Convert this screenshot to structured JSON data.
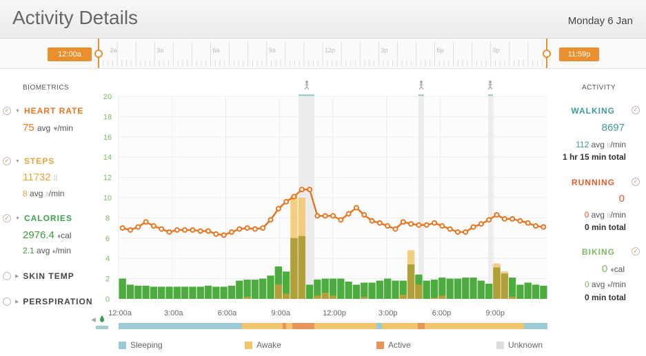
{
  "header": {
    "title": "Activity Details",
    "date": "Monday 6 Jan"
  },
  "timeline": {
    "start_label": "12:00a",
    "end_label": "11:59p",
    "ticks": [
      "2a",
      "3a",
      "6a",
      "9a",
      "12p",
      "3p",
      "6p",
      "9p"
    ]
  },
  "biometrics": {
    "label": "BIOMETRICS",
    "heart_rate": {
      "name": "HEART RATE",
      "value": "75",
      "avg": "avg",
      "unit": "/min"
    },
    "steps": {
      "name": "STEPS",
      "value": "11732",
      "sub_value": "8",
      "sub_avg": "avg",
      "sub_unit": "/min"
    },
    "calories": {
      "name": "CALORIES",
      "value": "2976.4",
      "unit": "cal",
      "sub_value": "2.1",
      "sub_avg": "avg",
      "sub_unit": "/min"
    },
    "skin_temp": {
      "name": "SKIN TEMP"
    },
    "perspiration": {
      "name": "PERSPIRATION"
    }
  },
  "activity": {
    "label": "ACTIVITY",
    "walking": {
      "name": "WALKING",
      "value": "8697",
      "avg_value": "112",
      "avg": "avg",
      "unit": "/min",
      "total": "1 hr 15 min total"
    },
    "running": {
      "name": "RUNNING",
      "value": "0",
      "avg_value": "0",
      "avg": "avg",
      "unit": "/min",
      "total": "0 min total"
    },
    "biking": {
      "name": "BIKING",
      "value": "0",
      "unit": "cal",
      "avg_value": "0",
      "avg": "avg",
      "sub_unit": "/min",
      "total": "0 min total"
    }
  },
  "colors": {
    "orange": "#e9751e",
    "steps": "#e8a23a",
    "green": "#4cad3e",
    "walking": "#3e9b9b",
    "running": "#e15b2b",
    "biking": "#7cb85f",
    "sleeping": "#9acad6",
    "awake": "#f2c46b",
    "active": "#e8935a",
    "unknown": "#dddddd"
  },
  "chart_data": {
    "type": "bar+line",
    "x_labels": [
      "12:00a",
      "3:00a",
      "6:00a",
      "9:00a",
      "12:00p",
      "3:00p",
      "6:00p",
      "9:00p"
    ],
    "y_ticks": [
      0,
      2,
      4,
      6,
      8,
      10,
      12,
      14,
      16,
      18,
      20
    ],
    "ylim": [
      0,
      20
    ],
    "series": [
      {
        "name": "Heart Rate",
        "values": [
          7.0,
          6.8,
          7.1,
          7.6,
          7.2,
          6.9,
          6.6,
          6.8,
          6.8,
          6.8,
          6.7,
          6.7,
          6.4,
          6.3,
          6.6,
          6.9,
          7.0,
          6.9,
          7.0,
          7.8,
          8.9,
          9.6,
          10.1,
          10.8,
          10.8,
          8.2,
          8.2,
          8.2,
          7.8,
          8.4,
          9.0,
          8.3,
          7.7,
          7.5,
          7.2,
          6.9,
          7.6,
          7.4,
          7.3,
          7.3,
          7.5,
          7.2,
          6.9,
          6.6,
          6.6,
          7.1,
          7.4,
          7.8,
          8.3,
          7.9,
          7.9,
          7.7,
          7.5,
          7.2,
          7.1
        ]
      },
      {
        "name": "Calories",
        "values": [
          2.0,
          1.4,
          1.3,
          1.3,
          1.2,
          1.2,
          1.2,
          1.2,
          1.2,
          1.2,
          1.2,
          1.3,
          1.2,
          1.2,
          1.3,
          1.8,
          1.9,
          1.9,
          2.0,
          2.3,
          3.2,
          2.7,
          6.0,
          6.2,
          1.4,
          1.9,
          2.0,
          2.0,
          2.0,
          1.7,
          1.4,
          1.6,
          1.6,
          1.8,
          2.0,
          1.8,
          1.8,
          3.4,
          2.4,
          1.8,
          1.9,
          2.1,
          2.0,
          2.0,
          2.1,
          2.1,
          1.8,
          1.5,
          3.1,
          2.5,
          2.1,
          1.4,
          1.6,
          1.4,
          1.3
        ]
      },
      {
        "name": "Steps",
        "values": [
          0,
          0,
          0,
          0,
          0,
          0,
          0,
          0,
          0,
          0,
          0,
          0,
          0,
          0,
          0,
          0,
          0.2,
          0,
          0,
          0,
          1.4,
          0.5,
          10.2,
          10.0,
          0,
          0.3,
          0.6,
          0.3,
          0,
          0,
          0,
          0.2,
          0,
          0,
          0,
          0,
          0.4,
          4.8,
          1.4,
          0,
          0.1,
          0.3,
          0,
          0,
          0,
          0,
          0,
          0,
          3.5,
          2.7,
          0.2,
          0,
          0,
          0,
          0
        ]
      }
    ]
  },
  "legend": {
    "sleeping": "Sleeping",
    "awake": "Awake",
    "active": "Active",
    "unknown": "Unknown"
  }
}
